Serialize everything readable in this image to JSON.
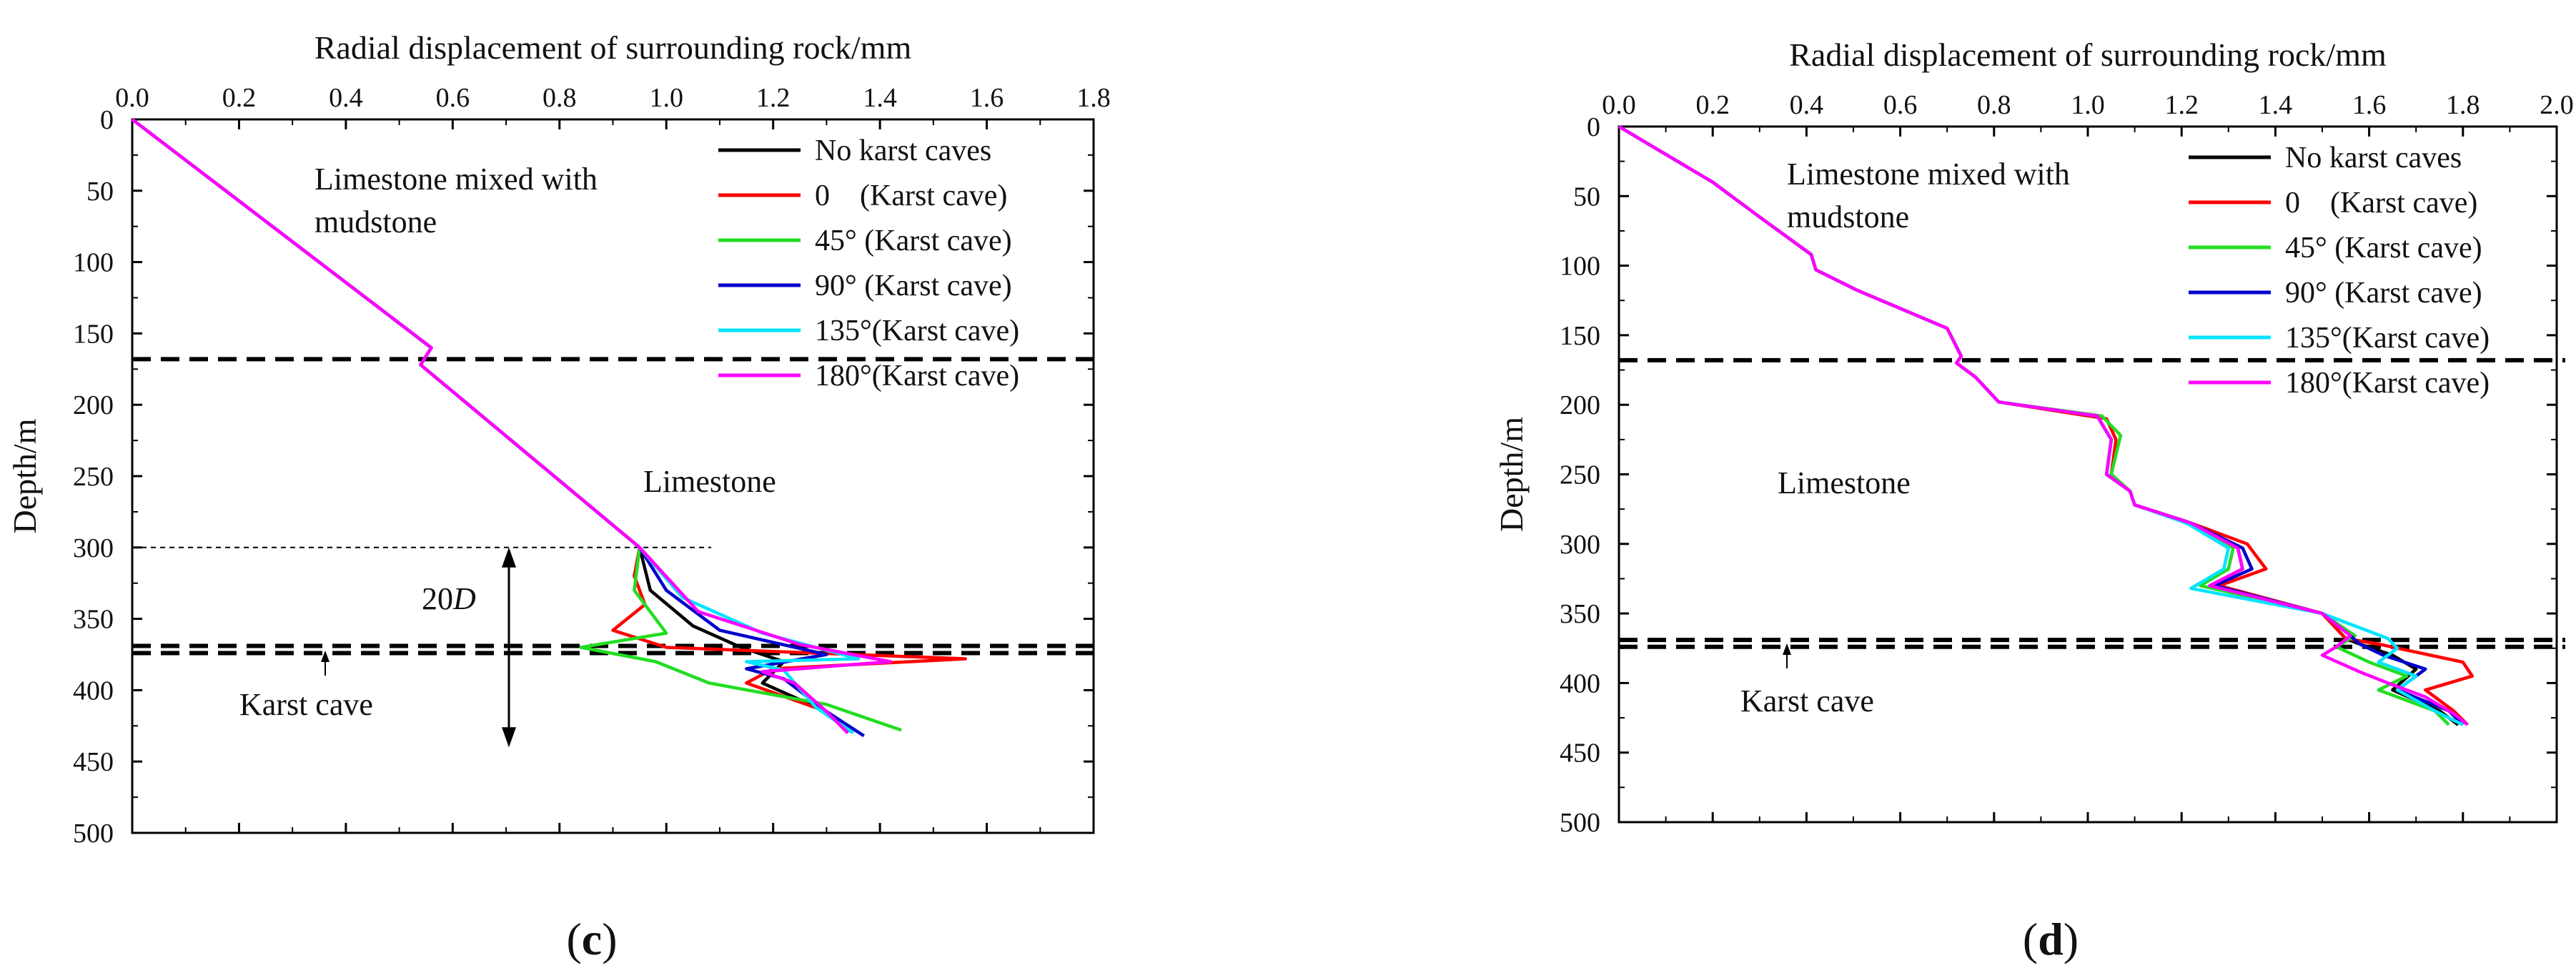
{
  "chart_data": [
    {
      "type": "line",
      "panel_label": "(c)",
      "xlabel": "Radial displacement of surrounding rock/mm",
      "ylabel": "Depth/m",
      "xlim": [
        0,
        1.8
      ],
      "ylim": [
        0,
        500
      ],
      "y_inverted": true,
      "x_axis_position": "top",
      "xticks": [
        "0.0",
        "0.2",
        "0.4",
        "0.6",
        "0.8",
        "1.0",
        "1.2",
        "1.4",
        "1.6",
        "1.8"
      ],
      "yticks": [
        "0",
        "50",
        "100",
        "150",
        "200",
        "250",
        "300",
        "350",
        "400",
        "450",
        "500"
      ],
      "annotations": {
        "upper_layer": "Limestone mixed with mudstone",
        "middle_layer": "Limestone",
        "dimension": "20D",
        "cave": "Karst cave"
      },
      "boundaries": [
        168,
        369,
        374
      ],
      "reference_line_depth": 300,
      "dimension_range": [
        300,
        440
      ],
      "legend_position": "top-right",
      "series": [
        {
          "name": "No karst caves",
          "color": "#000000",
          "points": [
            [
              0,
              0
            ],
            [
              0.56,
              160
            ],
            [
              0.54,
              172
            ],
            [
              0.95,
              300
            ],
            [
              0.97,
              330
            ],
            [
              1.05,
              355
            ],
            [
              1.14,
              370
            ],
            [
              1.22,
              380
            ],
            [
              1.18,
              395
            ],
            [
              1.3,
              415
            ],
            [
              1.34,
              430
            ]
          ]
        },
        {
          "name": "0    (Karst cave)",
          "color": "#ff0000",
          "points": [
            [
              0,
              0
            ],
            [
              0.56,
              160
            ],
            [
              0.54,
              172
            ],
            [
              0.95,
              300
            ],
            [
              0.94,
              320
            ],
            [
              0.96,
              340
            ],
            [
              0.9,
              358
            ],
            [
              1.0,
              370
            ],
            [
              1.56,
              378
            ],
            [
              1.2,
              385
            ],
            [
              1.15,
              395
            ],
            [
              1.3,
              415
            ],
            [
              1.34,
              430
            ]
          ]
        },
        {
          "name": "45° (Karst cave)",
          "color": "#22dd22",
          "points": [
            [
              0,
              0
            ],
            [
              0.56,
              160
            ],
            [
              0.54,
              172
            ],
            [
              0.95,
              300
            ],
            [
              0.94,
              330
            ],
            [
              1.0,
              360
            ],
            [
              0.84,
              370
            ],
            [
              0.98,
              380
            ],
            [
              1.08,
              395
            ],
            [
              1.3,
              410
            ],
            [
              1.44,
              428
            ]
          ]
        },
        {
          "name": "90° (Karst cave)",
          "color": "#0000cc",
          "points": [
            [
              0,
              0
            ],
            [
              0.56,
              160
            ],
            [
              0.54,
              172
            ],
            [
              0.95,
              300
            ],
            [
              1.0,
              330
            ],
            [
              1.1,
              358
            ],
            [
              1.3,
              375
            ],
            [
              1.15,
              385
            ],
            [
              1.22,
              392
            ],
            [
              1.3,
              415
            ],
            [
              1.37,
              432
            ]
          ]
        },
        {
          "name": "135°(Karst cave)",
          "color": "#00e5ff",
          "points": [
            [
              0,
              0
            ],
            [
              0.56,
              160
            ],
            [
              0.54,
              172
            ],
            [
              0.95,
              300
            ],
            [
              1.03,
              335
            ],
            [
              1.18,
              360
            ],
            [
              1.36,
              378
            ],
            [
              1.15,
              380
            ],
            [
              1.22,
              386
            ],
            [
              1.28,
              412
            ],
            [
              1.35,
              430
            ]
          ]
        },
        {
          "name": "180°(Karst cave)",
          "color": "#ff00ff",
          "points": [
            [
              0,
              0
            ],
            [
              0.56,
              160
            ],
            [
              0.54,
              172
            ],
            [
              0.95,
              300
            ],
            [
              1.06,
              345
            ],
            [
              1.25,
              368
            ],
            [
              1.42,
              380
            ],
            [
              1.18,
              387
            ],
            [
              1.24,
              395
            ],
            [
              1.3,
              415
            ],
            [
              1.34,
              430
            ]
          ]
        }
      ]
    },
    {
      "type": "line",
      "panel_label": "(d)",
      "xlabel": "Radial displacement of surrounding rock/mm",
      "ylabel": "Depth/m",
      "xlim": [
        0,
        2.0
      ],
      "ylim": [
        0,
        500
      ],
      "y_inverted": true,
      "x_axis_position": "top",
      "xticks": [
        "0.0",
        "0.2",
        "0.4",
        "0.6",
        "0.8",
        "1.0",
        "1.2",
        "1.4",
        "1.6",
        "1.8",
        "2.0"
      ],
      "yticks": [
        "0",
        "50",
        "100",
        "150",
        "200",
        "250",
        "300",
        "350",
        "400",
        "450",
        "500"
      ],
      "annotations": {
        "upper_layer": "Limestone mixed with mudstone",
        "middle_layer": "Limestone",
        "cave": "Karst cave"
      },
      "boundaries": [
        168,
        369,
        374
      ],
      "legend_position": "top-right",
      "series": [
        {
          "name": "No karst caves",
          "color": "#000000",
          "points": [
            [
              0,
              0
            ],
            [
              0.1,
              20
            ],
            [
              0.2,
              40
            ],
            [
              0.3,
              65
            ],
            [
              0.41,
              92
            ],
            [
              0.42,
              103
            ],
            [
              0.51,
              118
            ],
            [
              0.7,
              145
            ],
            [
              0.73,
              165
            ],
            [
              0.72,
              170
            ],
            [
              0.76,
              180
            ],
            [
              0.81,
              198
            ],
            [
              1.02,
              208
            ],
            [
              1.05,
              225
            ],
            [
              1.04,
              250
            ],
            [
              1.09,
              262
            ],
            [
              1.1,
              272
            ],
            [
              1.22,
              285
            ],
            [
              1.32,
              303
            ],
            [
              1.33,
              318
            ],
            [
              1.26,
              330
            ],
            [
              1.5,
              350
            ],
            [
              1.55,
              368
            ],
            [
              1.58,
              372
            ],
            [
              1.65,
              380
            ],
            [
              1.7,
              390
            ],
            [
              1.65,
              405
            ],
            [
              1.75,
              420
            ],
            [
              1.79,
              430
            ]
          ]
        },
        {
          "name": "0    (Karst cave)",
          "color": "#ff0000",
          "points": [
            [
              0,
              0
            ],
            [
              0.1,
              20
            ],
            [
              0.2,
              40
            ],
            [
              0.3,
              65
            ],
            [
              0.41,
              92
            ],
            [
              0.42,
              103
            ],
            [
              0.51,
              118
            ],
            [
              0.7,
              145
            ],
            [
              0.73,
              165
            ],
            [
              0.72,
              170
            ],
            [
              0.76,
              180
            ],
            [
              0.81,
              198
            ],
            [
              1.04,
              210
            ],
            [
              1.06,
              225
            ],
            [
              1.05,
              250
            ],
            [
              1.09,
              262
            ],
            [
              1.1,
              272
            ],
            [
              1.22,
              285
            ],
            [
              1.34,
              300
            ],
            [
              1.38,
              318
            ],
            [
              1.28,
              330
            ],
            [
              1.5,
              350
            ],
            [
              1.55,
              368
            ],
            [
              1.62,
              372
            ],
            [
              1.8,
              385
            ],
            [
              1.82,
              395
            ],
            [
              1.72,
              405
            ],
            [
              1.78,
              420
            ],
            [
              1.81,
              430
            ]
          ]
        },
        {
          "name": "45° (Karst cave)",
          "color": "#22dd22",
          "points": [
            [
              0,
              0
            ],
            [
              0.1,
              20
            ],
            [
              0.2,
              40
            ],
            [
              0.3,
              65
            ],
            [
              0.41,
              92
            ],
            [
              0.42,
              103
            ],
            [
              0.51,
              118
            ],
            [
              0.7,
              145
            ],
            [
              0.73,
              165
            ],
            [
              0.72,
              170
            ],
            [
              0.76,
              180
            ],
            [
              0.81,
              198
            ],
            [
              1.03,
              208
            ],
            [
              1.07,
              222
            ],
            [
              1.05,
              250
            ],
            [
              1.09,
              262
            ],
            [
              1.1,
              272
            ],
            [
              1.22,
              285
            ],
            [
              1.31,
              303
            ],
            [
              1.3,
              318
            ],
            [
              1.24,
              330
            ],
            [
              1.5,
              350
            ],
            [
              1.57,
              366
            ],
            [
              1.53,
              374
            ],
            [
              1.6,
              385
            ],
            [
              1.68,
              395
            ],
            [
              1.62,
              405
            ],
            [
              1.74,
              420
            ],
            [
              1.77,
              430
            ]
          ]
        },
        {
          "name": "90° (Karst cave)",
          "color": "#0000cc",
          "points": [
            [
              0,
              0
            ],
            [
              0.1,
              20
            ],
            [
              0.2,
              40
            ],
            [
              0.3,
              65
            ],
            [
              0.41,
              92
            ],
            [
              0.42,
              103
            ],
            [
              0.51,
              118
            ],
            [
              0.7,
              145
            ],
            [
              0.73,
              165
            ],
            [
              0.72,
              170
            ],
            [
              0.76,
              180
            ],
            [
              0.81,
              198
            ],
            [
              1.02,
              208
            ],
            [
              1.05,
              225
            ],
            [
              1.04,
              250
            ],
            [
              1.09,
              262
            ],
            [
              1.1,
              272
            ],
            [
              1.22,
              285
            ],
            [
              1.33,
              303
            ],
            [
              1.35,
              318
            ],
            [
              1.27,
              330
            ],
            [
              1.5,
              350
            ],
            [
              1.56,
              366
            ],
            [
              1.58,
              372
            ],
            [
              1.63,
              380
            ],
            [
              1.72,
              390
            ],
            [
              1.66,
              405
            ],
            [
              1.77,
              420
            ],
            [
              1.8,
              430
            ]
          ]
        },
        {
          "name": "135°(Karst cave)",
          "color": "#00e5ff",
          "points": [
            [
              0,
              0
            ],
            [
              0.1,
              20
            ],
            [
              0.2,
              40
            ],
            [
              0.3,
              65
            ],
            [
              0.41,
              92
            ],
            [
              0.42,
              103
            ],
            [
              0.51,
              118
            ],
            [
              0.7,
              145
            ],
            [
              0.73,
              165
            ],
            [
              0.72,
              170
            ],
            [
              0.76,
              180
            ],
            [
              0.81,
              198
            ],
            [
              1.02,
              208
            ],
            [
              1.05,
              225
            ],
            [
              1.04,
              250
            ],
            [
              1.09,
              262
            ],
            [
              1.1,
              272
            ],
            [
              1.21,
              285
            ],
            [
              1.3,
              303
            ],
            [
              1.29,
              318
            ],
            [
              1.22,
              332
            ],
            [
              1.5,
              350
            ],
            [
              1.64,
              368
            ],
            [
              1.66,
              375
            ],
            [
              1.62,
              385
            ],
            [
              1.7,
              395
            ],
            [
              1.66,
              405
            ],
            [
              1.74,
              420
            ],
            [
              1.8,
              430
            ]
          ]
        },
        {
          "name": "180°(Karst cave)",
          "color": "#ff00ff",
          "points": [
            [
              0,
              0
            ],
            [
              0.1,
              20
            ],
            [
              0.2,
              40
            ],
            [
              0.3,
              65
            ],
            [
              0.41,
              92
            ],
            [
              0.42,
              103
            ],
            [
              0.51,
              118
            ],
            [
              0.7,
              145
            ],
            [
              0.73,
              165
            ],
            [
              0.72,
              170
            ],
            [
              0.76,
              180
            ],
            [
              0.81,
              198
            ],
            [
              1.02,
              208
            ],
            [
              1.05,
              225
            ],
            [
              1.04,
              250
            ],
            [
              1.09,
              262
            ],
            [
              1.1,
              272
            ],
            [
              1.22,
              285
            ],
            [
              1.32,
              303
            ],
            [
              1.33,
              318
            ],
            [
              1.26,
              330
            ],
            [
              1.5,
              350
            ],
            [
              1.56,
              366
            ],
            [
              1.53,
              374
            ],
            [
              1.5,
              380
            ],
            [
              1.58,
              392
            ],
            [
              1.64,
              400
            ],
            [
              1.72,
              410
            ],
            [
              1.78,
              422
            ],
            [
              1.81,
              430
            ]
          ]
        }
      ]
    }
  ]
}
